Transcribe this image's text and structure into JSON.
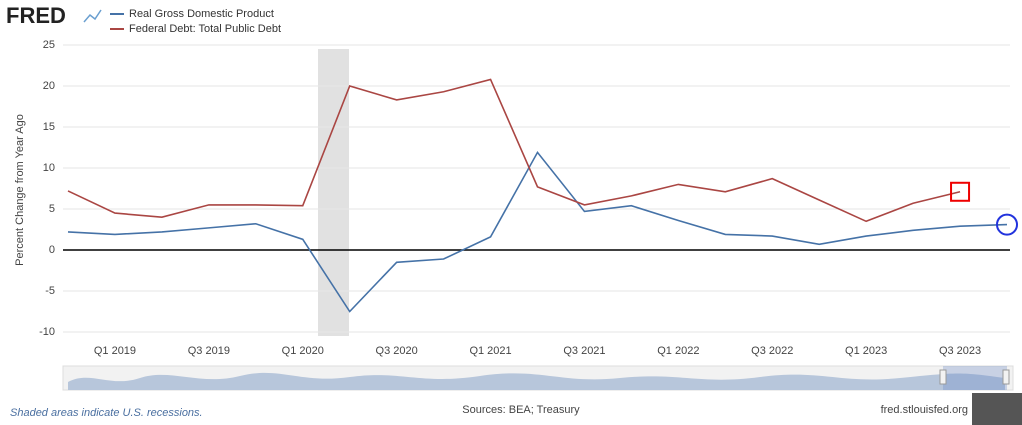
{
  "brand": "FRED",
  "chart_data": {
    "type": "line",
    "y_label": "Percent Change from Year Ago",
    "categories": [
      null,
      "Q1 2019",
      null,
      "Q3 2019",
      null,
      "Q1 2020",
      null,
      "Q3 2020",
      null,
      "Q1 2021",
      null,
      "Q3 2021",
      null,
      "Q1 2022",
      null,
      "Q3 2022",
      null,
      "Q1 2023",
      null,
      "Q3 2023",
      null
    ],
    "series": [
      {
        "name": "Real Gross Domestic Product",
        "color": "#4572a7",
        "values": [
          2.2,
          1.9,
          2.2,
          2.7,
          3.2,
          1.3,
          -7.5,
          -1.5,
          -1.1,
          1.6,
          11.9,
          4.7,
          5.4,
          3.6,
          1.9,
          1.7,
          0.7,
          1.7,
          2.4,
          2.9,
          3.1
        ]
      },
      {
        "name": "Federal Debt: Total Public Debt",
        "color": "#aa4643",
        "values": [
          7.2,
          4.5,
          4.0,
          5.5,
          5.5,
          5.4,
          20.0,
          18.3,
          19.3,
          20.8,
          7.7,
          5.5,
          6.6,
          8.0,
          7.1,
          8.7,
          6.1,
          3.5,
          5.7,
          7.1,
          null
        ]
      }
    ],
    "ylim": [
      -10,
      25
    ],
    "yticks": [
      -10,
      -5,
      0,
      5,
      10,
      15,
      20,
      25
    ],
    "grid": true
  },
  "footer": {
    "note": "Shaded areas indicate U.S. recessions.",
    "sources": "Sources: BEA; Treasury",
    "site": "fred.stlouisfed.org"
  }
}
